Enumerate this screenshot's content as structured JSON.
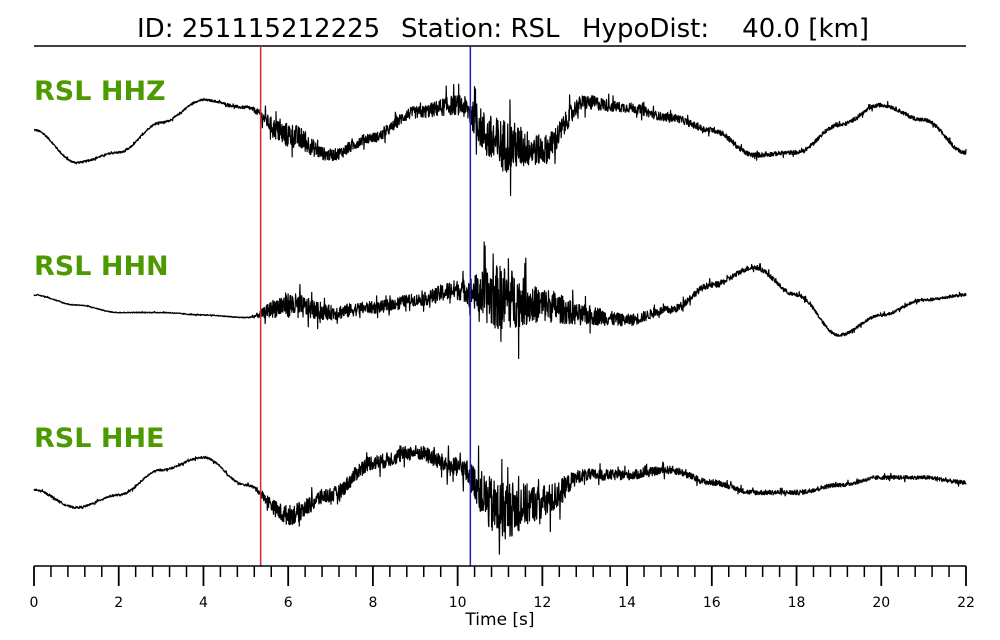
{
  "header": {
    "id_text": "ID: 251115212225",
    "station_text": "Station: RSL",
    "hypodist_text": "HypoDist:    40.0 [km]"
  },
  "chart_data": {
    "type": "line",
    "xlabel": "Time [s]",
    "xlim": [
      0,
      22
    ],
    "x_ticks": [
      0,
      2,
      4,
      6,
      8,
      10,
      12,
      14,
      16,
      18,
      20,
      22
    ],
    "x_tick_labels": [
      "0",
      "2",
      "4",
      "6",
      "8",
      "10",
      "12",
      "14",
      "16",
      "18",
      "20",
      "22"
    ],
    "minor_tick_step": 0.4,
    "picks": [
      {
        "time": 5.35,
        "color": "#d62728"
      },
      {
        "time": 10.3,
        "color": "#1f1fb4"
      }
    ],
    "label_color": "#4d9a00",
    "series": [
      {
        "name": "RSL HHZ",
        "x": [
          0,
          1,
          2,
          3,
          4,
          5,
          6,
          7,
          8,
          9,
          10,
          11,
          12,
          13,
          14,
          15,
          16,
          17,
          18,
          19,
          20,
          21,
          22
        ],
        "y": [
          0.1,
          -0.55,
          -0.35,
          0.25,
          0.7,
          0.55,
          0.0,
          -0.4,
          -0.05,
          0.45,
          0.6,
          -0.2,
          -0.3,
          0.65,
          0.55,
          0.35,
          0.1,
          -0.4,
          -0.35,
          0.2,
          0.6,
          0.3,
          -0.35
        ],
        "noise": [
          0.02,
          0.02,
          0.02,
          0.02,
          0.02,
          0.03,
          0.25,
          0.12,
          0.1,
          0.12,
          0.2,
          0.55,
          0.3,
          0.15,
          0.1,
          0.08,
          0.06,
          0.05,
          0.04,
          0.04,
          0.04,
          0.04,
          0.04
        ]
      },
      {
        "name": "RSL HHN",
        "x": [
          0,
          1,
          2,
          3,
          4,
          5,
          6,
          7,
          8,
          9,
          10,
          11,
          12,
          13,
          14,
          15,
          16,
          17,
          18,
          19,
          20,
          21,
          22
        ],
        "y": [
          0.2,
          0.0,
          -0.15,
          -0.15,
          -0.2,
          -0.25,
          0.0,
          -0.15,
          -0.05,
          0.1,
          0.3,
          0.15,
          0.0,
          -0.2,
          -0.3,
          -0.1,
          0.4,
          0.75,
          0.2,
          -0.6,
          -0.2,
          0.1,
          0.2
        ],
        "noise": [
          0.01,
          0.01,
          0.01,
          0.01,
          0.01,
          0.01,
          0.25,
          0.15,
          0.12,
          0.12,
          0.2,
          0.65,
          0.35,
          0.2,
          0.12,
          0.08,
          0.06,
          0.05,
          0.04,
          0.03,
          0.03,
          0.03,
          0.03
        ]
      },
      {
        "name": "RSL HHE",
        "x": [
          0,
          1,
          2,
          3,
          4,
          5,
          6,
          7,
          8,
          9,
          10,
          11,
          12,
          13,
          14,
          15,
          16,
          17,
          18,
          19,
          20,
          21,
          22
        ],
        "y": [
          -0.1,
          -0.45,
          -0.2,
          0.3,
          0.55,
          0.0,
          -0.6,
          -0.2,
          0.45,
          0.65,
          0.35,
          -0.5,
          -0.35,
          0.2,
          0.2,
          0.3,
          0.05,
          -0.15,
          -0.15,
          0.0,
          0.15,
          0.15,
          0.05
        ],
        "noise": [
          0.02,
          0.02,
          0.02,
          0.02,
          0.02,
          0.02,
          0.2,
          0.15,
          0.15,
          0.15,
          0.2,
          0.6,
          0.35,
          0.12,
          0.1,
          0.08,
          0.06,
          0.05,
          0.05,
          0.04,
          0.04,
          0.04,
          0.04
        ]
      }
    ]
  }
}
